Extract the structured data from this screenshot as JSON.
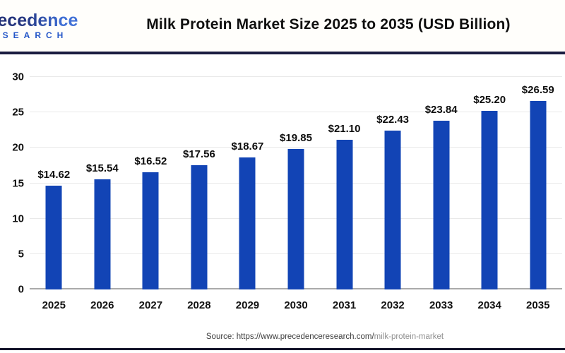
{
  "header": {
    "logo_line1": "Precedence",
    "logo_line2": "RESEARCH",
    "title": "Milk Protein Market Size 2025 to 2035 (USD Billion)"
  },
  "chart_data": {
    "type": "bar",
    "title": "Milk Protein Market Size 2025 to 2035 (USD Billion)",
    "categories": [
      "2025",
      "2026",
      "2027",
      "2028",
      "2029",
      "2030",
      "2031",
      "2032",
      "2033",
      "2034",
      "2035"
    ],
    "values": [
      14.62,
      15.54,
      16.52,
      17.56,
      18.67,
      19.85,
      21.1,
      22.43,
      23.84,
      25.2,
      26.59
    ],
    "value_labels": [
      "$14.62",
      "$15.54",
      "$16.52",
      "$17.56",
      "$18.67",
      "$19.85",
      "$21.10",
      "$22.43",
      "$23.84",
      "$25.20",
      "$26.59"
    ],
    "unit": "USD Billion",
    "ylim": [
      0,
      30
    ],
    "yticks": [
      0,
      5,
      10,
      15,
      20,
      25,
      30
    ],
    "grid": true,
    "legend": false,
    "bar_color": "#1244b5",
    "accent_navy": "#1a1c41"
  },
  "footer": {
    "source_prefix": "Source: https://www.precedenceresearch.com/",
    "source_path": "milk-protein-market"
  }
}
